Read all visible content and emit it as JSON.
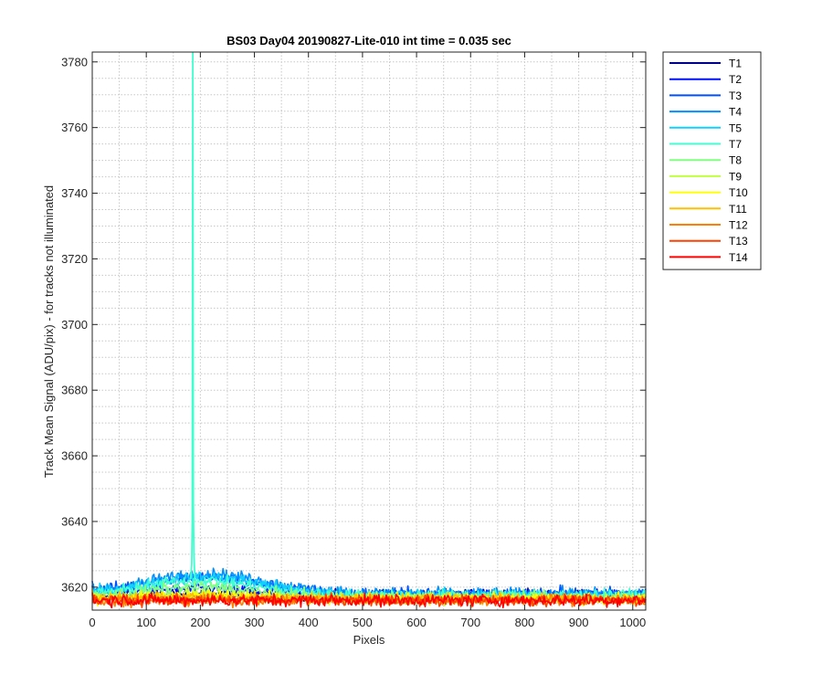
{
  "chart_data": {
    "type": "line",
    "title": "BS03 Day04 20190827-Lite-010 int time = 0.035 sec",
    "xlabel": "Pixels",
    "ylabel": "Track Mean Signal (ADU/pix) - for tracks not illuminated",
    "xlim": [
      0,
      1024
    ],
    "ylim": [
      3613,
      3783
    ],
    "x_ticks": [
      0,
      100,
      200,
      300,
      400,
      500,
      600,
      700,
      800,
      900,
      1000
    ],
    "y_ticks": [
      3620,
      3640,
      3660,
      3680,
      3700,
      3720,
      3740,
      3760,
      3780
    ],
    "grid": "major and minor, dotted",
    "legend_position": "outside-right",
    "spike": {
      "series": "T7",
      "x": 186,
      "y": 3783
    },
    "series": [
      {
        "name": "T1",
        "color": "#00008f",
        "base": 3617.5,
        "hump": 0,
        "hump_center": 200,
        "hump_width": 110,
        "noise": 1.2
      },
      {
        "name": "T2",
        "color": "#0010ff",
        "base": 3617.5,
        "hump": 2,
        "hump_center": 200,
        "hump_width": 110,
        "noise": 1.2
      },
      {
        "name": "T3",
        "color": "#0050ff",
        "base": 3618,
        "hump": 5,
        "hump_center": 200,
        "hump_width": 110,
        "noise": 1.3
      },
      {
        "name": "T4",
        "color": "#0090ff",
        "base": 3618,
        "hump": 6,
        "hump_center": 210,
        "hump_width": 110,
        "noise": 1.3
      },
      {
        "name": "T5",
        "color": "#10d0ff",
        "base": 3617.5,
        "hump": 5.5,
        "hump_center": 210,
        "hump_width": 110,
        "noise": 1.3
      },
      {
        "name": "T7",
        "color": "#40ffd0",
        "base": 3617.5,
        "hump": 4.5,
        "hump_center": 200,
        "hump_width": 100,
        "noise": 1.3
      },
      {
        "name": "T8",
        "color": "#80ff80",
        "base": 3617,
        "hump": 3,
        "hump_center": 200,
        "hump_width": 100,
        "noise": 1.2
      },
      {
        "name": "T9",
        "color": "#c0ff40",
        "base": 3616.5,
        "hump": 1.5,
        "hump_center": 200,
        "hump_width": 100,
        "noise": 1.2
      },
      {
        "name": "T10",
        "color": "#ffff00",
        "base": 3616.5,
        "hump": 1,
        "hump_center": 200,
        "hump_width": 100,
        "noise": 1.2
      },
      {
        "name": "T11",
        "color": "#ffc000",
        "base": 3616.5,
        "hump": 0.5,
        "hump_center": 200,
        "hump_width": 100,
        "noise": 1.2
      },
      {
        "name": "T12",
        "color": "#ff8000",
        "base": 3616,
        "hump": 0,
        "hump_center": 200,
        "hump_width": 100,
        "noise": 1.2
      },
      {
        "name": "T13",
        "color": "#ff4000",
        "base": 3616,
        "hump": 0,
        "hump_center": 200,
        "hump_width": 100,
        "noise": 1.2
      },
      {
        "name": "T14",
        "color": "#ff0000",
        "base": 3616,
        "hump": 0,
        "hump_center": 200,
        "hump_width": 100,
        "noise": 1.3
      }
    ]
  }
}
